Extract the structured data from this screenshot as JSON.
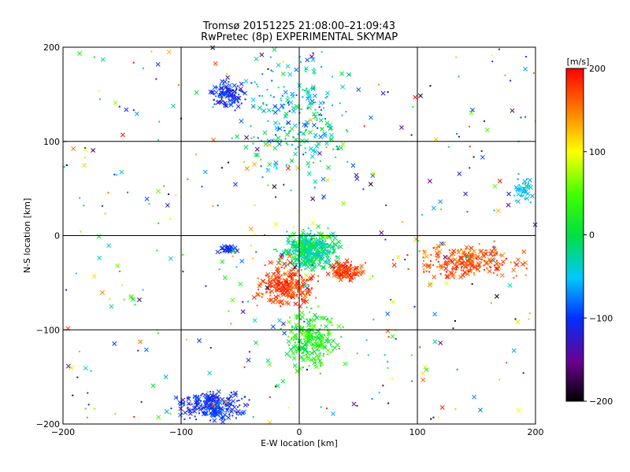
{
  "chart_data": {
    "type": "scatter",
    "title": "Tromsø 20151225 21:08:00–21:09:43",
    "subtitle": "RwPretec (8p) EXPERIMENTAL SKYMAP",
    "xlabel": "E-W location [km]",
    "ylabel": "N-S location [km]",
    "xlim": [
      -200,
      200
    ],
    "ylim": [
      -200,
      200
    ],
    "x_ticks": [
      "−200",
      "−100",
      "0",
      "100",
      "200"
    ],
    "y_ticks": [
      "200",
      "100",
      "0",
      "−100",
      "−200"
    ],
    "x_tick_values": [
      -200,
      -100,
      0,
      100,
      200
    ],
    "y_tick_values": [
      200,
      100,
      0,
      -100,
      -200
    ],
    "grid": true,
    "grid_step": 100,
    "colorbar": {
      "label": "[m/s]",
      "min": -200,
      "max": 200,
      "tick_labels": [
        "200",
        "100",
        "0",
        "−100",
        "−200"
      ],
      "tick_values": [
        200,
        100,
        0,
        -100,
        -200
      ],
      "colormap": "rainbow (black→purple→blue→cyan→green→yellow→red)"
    },
    "markers": [
      "x (cross)",
      "+ small dot"
    ],
    "clusters": [
      {
        "region": "north centre",
        "x": [
          -60,
          60
        ],
        "y": [
          50,
          200
        ],
        "velocity_range_ms": [
          -100,
          20
        ],
        "density": "high"
      },
      {
        "region": "north-west",
        "x": [
          -80,
          -40
        ],
        "y": [
          130,
          170
        ],
        "velocity_range_ms": [
          -130,
          -80
        ],
        "density": "medium"
      },
      {
        "region": "centre",
        "x": [
          -20,
          40
        ],
        "y": [
          -40,
          10
        ],
        "velocity_range_ms": [
          -60,
          40
        ],
        "density": "very high"
      },
      {
        "region": "centre-south (red)",
        "x": [
          -40,
          20
        ],
        "y": [
          -80,
          -25
        ],
        "velocity_range_ms": [
          150,
          200
        ],
        "density": "high"
      },
      {
        "region": "centre-east (red)",
        "x": [
          20,
          60
        ],
        "y": [
          -50,
          -25
        ],
        "velocity_range_ms": [
          150,
          200
        ],
        "density": "medium"
      },
      {
        "region": "east (red)",
        "x": [
          80,
          200
        ],
        "y": [
          -50,
          -5
        ],
        "velocity_range_ms": [
          140,
          200
        ],
        "density": "high"
      },
      {
        "region": "south centre",
        "x": [
          -20,
          40
        ],
        "y": [
          -150,
          -70
        ],
        "velocity_range_ms": [
          -10,
          60
        ],
        "density": "high"
      },
      {
        "region": "south-west (blue)",
        "x": [
          -110,
          -40
        ],
        "y": [
          -200,
          -160
        ],
        "velocity_range_ms": [
          -130,
          -80
        ],
        "density": "high"
      },
      {
        "region": "west-centre (blue)",
        "x": [
          -70,
          -50
        ],
        "y": [
          -20,
          -10
        ],
        "velocity_range_ms": [
          -120,
          -90
        ],
        "density": "low"
      },
      {
        "region": "east edge (cyan)",
        "x": [
          180,
          200
        ],
        "y": [
          30,
          70
        ],
        "velocity_range_ms": [
          -70,
          -40
        ],
        "density": "low"
      },
      {
        "region": "scattered",
        "x": [
          -200,
          200
        ],
        "y": [
          -200,
          200
        ],
        "velocity_range_ms": [
          -200,
          200
        ],
        "density": "sparse"
      }
    ]
  }
}
